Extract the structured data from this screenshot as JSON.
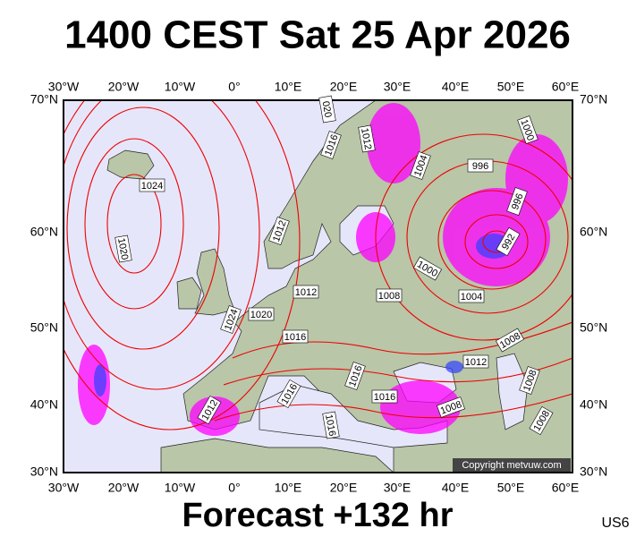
{
  "title": "1400 CEST Sat 25 Apr 2026",
  "lon_labels": [
    "30°W",
    "20°W",
    "10°W",
    "0°",
    "10°E",
    "20°E",
    "30°E",
    "40°E",
    "50°E",
    "60°E"
  ],
  "lat_labels": [
    "70°N",
    "60°N",
    "50°N",
    "40°N",
    "30°N"
  ],
  "isobar_labels": [
    "1024",
    "1020",
    "020",
    "1016",
    "1012",
    "1004",
    "996",
    "1000",
    "996",
    "992",
    "1012",
    "1000",
    "1004",
    "1012",
    "1008",
    "1020",
    "1024",
    "1016",
    "1008",
    "1012",
    "1016",
    "1016",
    "1016",
    "1012",
    "1008",
    "1016",
    "1008",
    "1008"
  ],
  "copyright": "Copyright metvuw.com",
  "footer": "Forecast +132 hr",
  "code": "US6"
}
